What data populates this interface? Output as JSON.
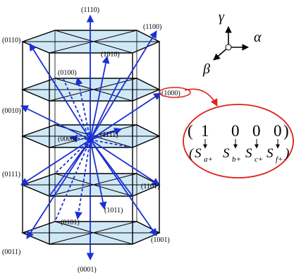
{
  "vertices": [
    {
      "id": "v1110",
      "label": "(1110)"
    },
    {
      "id": "v1100",
      "label": "(1100)"
    },
    {
      "id": "v0110",
      "label": "(0110)"
    },
    {
      "id": "v1010",
      "label": "(1010)"
    },
    {
      "id": "v0100",
      "label": "(0100)"
    },
    {
      "id": "v1000",
      "label": "(1000)"
    },
    {
      "id": "v0010",
      "label": "(0010)"
    },
    {
      "id": "v0000",
      "label": "(0000)"
    },
    {
      "id": "v1111",
      "label": "(1111)"
    },
    {
      "id": "v0111",
      "label": "(0111)"
    },
    {
      "id": "v1101",
      "label": "(1101)"
    },
    {
      "id": "v1011",
      "label": "(1011)"
    },
    {
      "id": "v0101",
      "label": "(0101)"
    },
    {
      "id": "v0011",
      "label": "(0011)"
    },
    {
      "id": "v1001",
      "label": "(1001)"
    },
    {
      "id": "v0001",
      "label": "(0001)"
    }
  ],
  "axes": {
    "alpha": "α",
    "beta": "β",
    "gamma": "γ"
  },
  "callout": {
    "open_paren": "(",
    "close_paren": ")",
    "values": [
      "1",
      "0",
      "0",
      "0"
    ],
    "symbols": [
      {
        "base": "S",
        "sub": "a+"
      },
      {
        "base": "S",
        "sub": "b+"
      },
      {
        "base": "S",
        "sub": "c+"
      },
      {
        "base": "S",
        "sub": "f+"
      }
    ]
  },
  "colors": {
    "arrow": "#1a2fd6",
    "plane": "#cfe8f6",
    "frame": "#000000",
    "callout": "#e0201a"
  }
}
